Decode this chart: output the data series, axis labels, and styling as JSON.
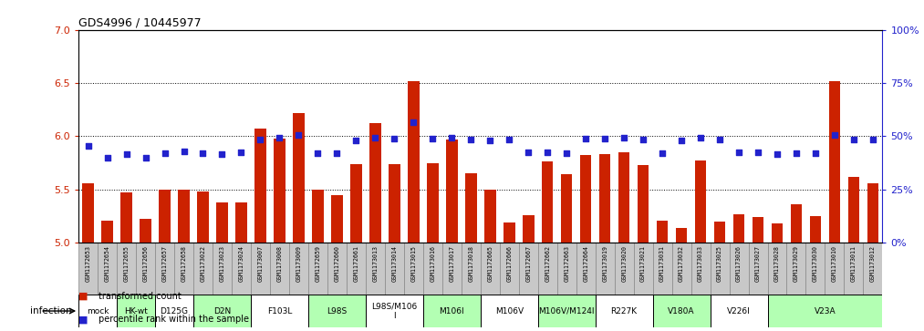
{
  "title": "GDS4996 / 10445977",
  "samples": [
    "GSM1172653",
    "GSM1172654",
    "GSM1172655",
    "GSM1172656",
    "GSM1172657",
    "GSM1172658",
    "GSM1173022",
    "GSM1173023",
    "GSM1173024",
    "GSM1173007",
    "GSM1173008",
    "GSM1173009",
    "GSM1172659",
    "GSM1172660",
    "GSM1172661",
    "GSM1173013",
    "GSM1173014",
    "GSM1173015",
    "GSM1173016",
    "GSM1173017",
    "GSM1173018",
    "GSM1172665",
    "GSM1172666",
    "GSM1172667",
    "GSM1172662",
    "GSM1172663",
    "GSM1172664",
    "GSM1173019",
    "GSM1173020",
    "GSM1173021",
    "GSM1173031",
    "GSM1173032",
    "GSM1173033",
    "GSM1173025",
    "GSM1173026",
    "GSM1173027",
    "GSM1173028",
    "GSM1173029",
    "GSM1173030",
    "GSM1173010",
    "GSM1173011",
    "GSM1173012"
  ],
  "bar_values": [
    5.56,
    5.21,
    5.47,
    5.22,
    5.5,
    5.5,
    5.48,
    5.38,
    5.38,
    6.07,
    5.98,
    6.22,
    5.5,
    5.45,
    5.74,
    6.12,
    5.74,
    6.52,
    5.75,
    5.97,
    5.65,
    5.5,
    5.19,
    5.26,
    5.76,
    5.64,
    5.82,
    5.83,
    5.85,
    5.73,
    5.21,
    5.14,
    5.77,
    5.2,
    5.27,
    5.24,
    5.18,
    5.36,
    5.25,
    6.52,
    5.62,
    5.56
  ],
  "percentile_left": [
    5.91,
    5.8,
    5.83,
    5.8,
    5.84,
    5.86,
    5.84,
    5.83,
    5.85,
    5.97,
    5.99,
    6.01,
    5.84,
    5.84,
    5.96,
    5.99,
    5.98,
    6.13,
    5.98,
    5.99,
    5.97,
    5.96,
    5.97,
    5.85,
    5.85,
    5.84,
    5.98,
    5.98,
    5.99,
    5.97,
    5.84,
    5.96,
    5.99,
    5.97,
    5.85,
    5.85,
    5.83,
    5.84,
    5.84,
    6.01,
    5.97,
    5.97
  ],
  "groups": [
    {
      "label": "mock",
      "start": 0,
      "end": 2,
      "color": "#ffffff"
    },
    {
      "label": "HK-wt",
      "start": 2,
      "end": 4,
      "color": "#b3ffb3"
    },
    {
      "label": "D125G",
      "start": 4,
      "end": 6,
      "color": "#ffffff"
    },
    {
      "label": "D2N",
      "start": 6,
      "end": 9,
      "color": "#b3ffb3"
    },
    {
      "label": "F103L",
      "start": 9,
      "end": 12,
      "color": "#ffffff"
    },
    {
      "label": "L98S",
      "start": 12,
      "end": 15,
      "color": "#b3ffb3"
    },
    {
      "label": "L98S/M106\nI",
      "start": 15,
      "end": 18,
      "color": "#ffffff"
    },
    {
      "label": "M106I",
      "start": 18,
      "end": 21,
      "color": "#b3ffb3"
    },
    {
      "label": "M106V",
      "start": 21,
      "end": 24,
      "color": "#ffffff"
    },
    {
      "label": "M106V/M124I",
      "start": 24,
      "end": 27,
      "color": "#b3ffb3"
    },
    {
      "label": "R227K",
      "start": 27,
      "end": 30,
      "color": "#ffffff"
    },
    {
      "label": "V180A",
      "start": 30,
      "end": 33,
      "color": "#b3ffb3"
    },
    {
      "label": "V226I",
      "start": 33,
      "end": 36,
      "color": "#ffffff"
    },
    {
      "label": "V23A",
      "start": 36,
      "end": 42,
      "color": "#b3ffb3"
    }
  ],
  "ylim_left": [
    5.0,
    7.0
  ],
  "yticks_left": [
    5.0,
    5.5,
    6.0,
    6.5,
    7.0
  ],
  "ylim_right": [
    0,
    100
  ],
  "yticks_right": [
    0,
    25,
    50,
    75,
    100
  ],
  "bar_color": "#cc2200",
  "dot_color": "#2222cc",
  "tick_bg_color": "#cccccc",
  "infection_label": "infection",
  "legend_bar": "transformed count",
  "legend_dot": "percentile rank within the sample"
}
